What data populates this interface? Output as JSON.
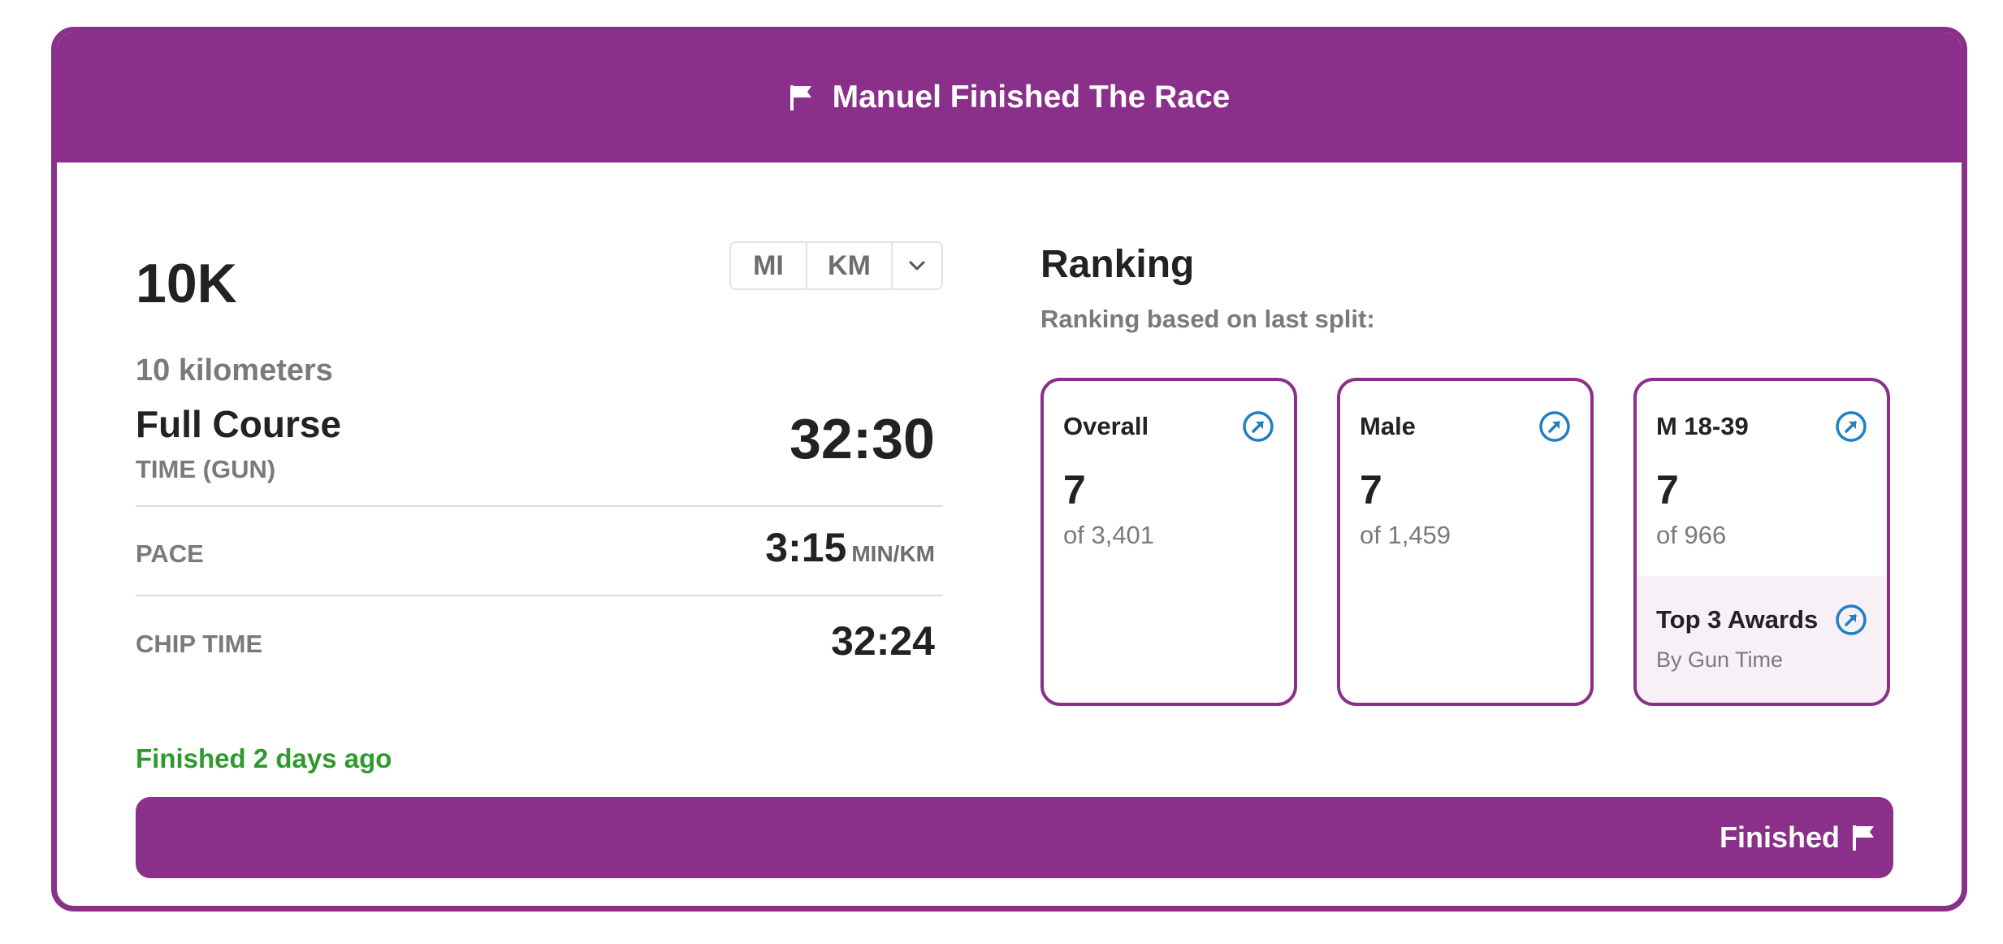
{
  "header": {
    "title": "Manuel Finished The Race"
  },
  "race": {
    "distance": "10K",
    "distance_sub": "10 kilometers",
    "unit_toggle": {
      "mi": "MI",
      "km": "KM"
    },
    "course_name": "Full Course",
    "time_label": "TIME (GUN)",
    "gun_time": "32:30",
    "pace_label": "PACE",
    "pace_value": "3:15",
    "pace_unit": "MIN/KM",
    "chip_label": "CHIP TIME",
    "chip_value": "32:24",
    "finished_ago": "Finished 2 days ago"
  },
  "ranking": {
    "title": "Ranking",
    "subtitle": "Ranking based on last split:",
    "cards": [
      {
        "name": "Overall",
        "place": "7",
        "of": "of 3,401"
      },
      {
        "name": "Male",
        "place": "7",
        "of": "of 1,459"
      },
      {
        "name": "M 18-39",
        "place": "7",
        "of": "of 966"
      }
    ],
    "award": {
      "name": "Top 3 Awards",
      "sub": "By Gun Time"
    }
  },
  "status_bar": {
    "label": "Finished"
  },
  "icons": {
    "flag": "flag-icon",
    "link": "arrow-up-right-circle-icon",
    "dropdown": "chevron-down-icon"
  },
  "colors": {
    "brand": "#8a2f8a",
    "success": "#2e9a2e",
    "link": "#1f7fc2"
  }
}
